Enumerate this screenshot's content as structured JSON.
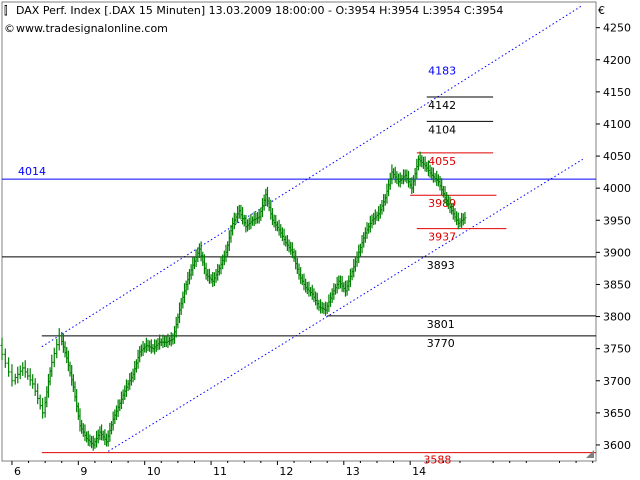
{
  "header": {
    "line1": "DAX Perf. Index [.DAX  15 Minuten] 13.03.2009 18:00:00 - O:3954 H:3954 L:3954 C:3954",
    "line2": "www.tradesignalonline.com",
    "currency": "€"
  },
  "colors": {
    "candle": "#008000",
    "frame": "#808080",
    "blue": "#0000ff",
    "red": "#e00000",
    "black": "#000000"
  },
  "chart_data": {
    "type": "line",
    "title": "DAX Perf. Index [.DAX  15 Minuten]",
    "ylim": [
      3575,
      4290
    ],
    "xlim": [
      5.85,
      14.8
    ],
    "y_ticks": [
      3600,
      3650,
      3700,
      3750,
      3800,
      3850,
      3900,
      3950,
      4000,
      4050,
      4100,
      4150,
      4200,
      4250
    ],
    "x_ticks": [
      {
        "label": "6",
        "x": 6.0
      },
      {
        "label": "9",
        "x": 7.0
      },
      {
        "label": "10",
        "x": 8.0
      },
      {
        "label": "11",
        "x": 9.0
      },
      {
        "label": "12",
        "x": 10.0
      },
      {
        "label": "13",
        "x": 11.0
      },
      {
        "label": "14",
        "x": 12.0
      }
    ],
    "series": [
      {
        "points": [
          [
            5.85,
            3755
          ],
          [
            6.05,
            3700
          ],
          [
            6.2,
            3720
          ],
          [
            6.35,
            3695
          ],
          [
            6.5,
            3650
          ],
          [
            6.6,
            3715
          ],
          [
            6.75,
            3770
          ],
          [
            6.85,
            3735
          ],
          [
            6.95,
            3690
          ],
          [
            7.05,
            3630
          ],
          [
            7.15,
            3610
          ],
          [
            7.25,
            3600
          ],
          [
            7.35,
            3620
          ],
          [
            7.45,
            3605
          ],
          [
            7.55,
            3640
          ],
          [
            7.65,
            3665
          ],
          [
            7.75,
            3690
          ],
          [
            7.85,
            3710
          ],
          [
            7.95,
            3745
          ],
          [
            8.05,
            3755
          ],
          [
            8.15,
            3750
          ],
          [
            8.25,
            3760
          ],
          [
            8.35,
            3760
          ],
          [
            8.45,
            3765
          ],
          [
            8.55,
            3810
          ],
          [
            8.65,
            3850
          ],
          [
            8.75,
            3880
          ],
          [
            8.85,
            3905
          ],
          [
            8.95,
            3865
          ],
          [
            9.05,
            3855
          ],
          [
            9.15,
            3875
          ],
          [
            9.25,
            3900
          ],
          [
            9.35,
            3945
          ],
          [
            9.45,
            3965
          ],
          [
            9.55,
            3940
          ],
          [
            9.65,
            3950
          ],
          [
            9.75,
            3955
          ],
          [
            9.85,
            3990
          ],
          [
            9.95,
            3950
          ],
          [
            10.05,
            3935
          ],
          [
            10.15,
            3915
          ],
          [
            10.25,
            3900
          ],
          [
            10.35,
            3865
          ],
          [
            10.45,
            3845
          ],
          [
            10.55,
            3835
          ],
          [
            10.65,
            3815
          ],
          [
            10.75,
            3810
          ],
          [
            10.85,
            3835
          ],
          [
            10.95,
            3855
          ],
          [
            11.05,
            3840
          ],
          [
            11.15,
            3870
          ],
          [
            11.25,
            3900
          ],
          [
            11.35,
            3930
          ],
          [
            11.45,
            3950
          ],
          [
            11.55,
            3960
          ],
          [
            11.65,
            3985
          ],
          [
            11.75,
            4025
          ],
          [
            11.85,
            4010
          ],
          [
            11.95,
            4020
          ],
          [
            12.05,
            4000
          ],
          [
            12.15,
            4045
          ],
          [
            12.25,
            4035
          ],
          [
            12.35,
            4020
          ],
          [
            12.45,
            4010
          ],
          [
            12.55,
            3985
          ],
          [
            12.65,
            3965
          ],
          [
            12.75,
            3945
          ],
          [
            12.85,
            3954
          ]
        ]
      }
    ],
    "levels": [
      {
        "label": "4183",
        "value": 4183,
        "color": "blue",
        "x0": 12.25,
        "x1": 12.25
      },
      {
        "label": "4142",
        "value": 4142,
        "color": "black",
        "x0": 12.25,
        "x1": 13.25
      },
      {
        "label": "4104",
        "value": 4104,
        "color": "black",
        "x0": 12.25,
        "x1": 13.25
      },
      {
        "label": "4055",
        "value": 4055,
        "color": "red",
        "x0": 12.1,
        "x1": 13.25
      },
      {
        "label": "4014",
        "value": 4014,
        "color": "blue",
        "x0": 5.85,
        "x1": 14.8
      },
      {
        "label": "3989",
        "value": 3989,
        "color": "red",
        "x0": 12.0,
        "x1": 13.3
      },
      {
        "label": "3937",
        "value": 3937,
        "color": "red",
        "x0": 12.1,
        "x1": 13.45
      },
      {
        "label": "3893",
        "value": 3893,
        "color": "black",
        "x0": 5.85,
        "x1": 14.8
      },
      {
        "label": "3801",
        "value": 3801,
        "color": "black",
        "x0": 10.75,
        "x1": 14.8
      },
      {
        "label": "3770",
        "value": 3770,
        "color": "black",
        "x0": 6.45,
        "x1": 14.8
      },
      {
        "label": "3588",
        "value": 3588,
        "color": "red",
        "x0": 6.45,
        "x1": 14.8
      }
    ],
    "trend_lines": [
      {
        "x0": 6.45,
        "y0": 3753,
        "x1": 14.6,
        "y1": 4285
      },
      {
        "x0": 7.45,
        "y0": 3590,
        "x1": 14.6,
        "y1": 4045
      }
    ]
  }
}
